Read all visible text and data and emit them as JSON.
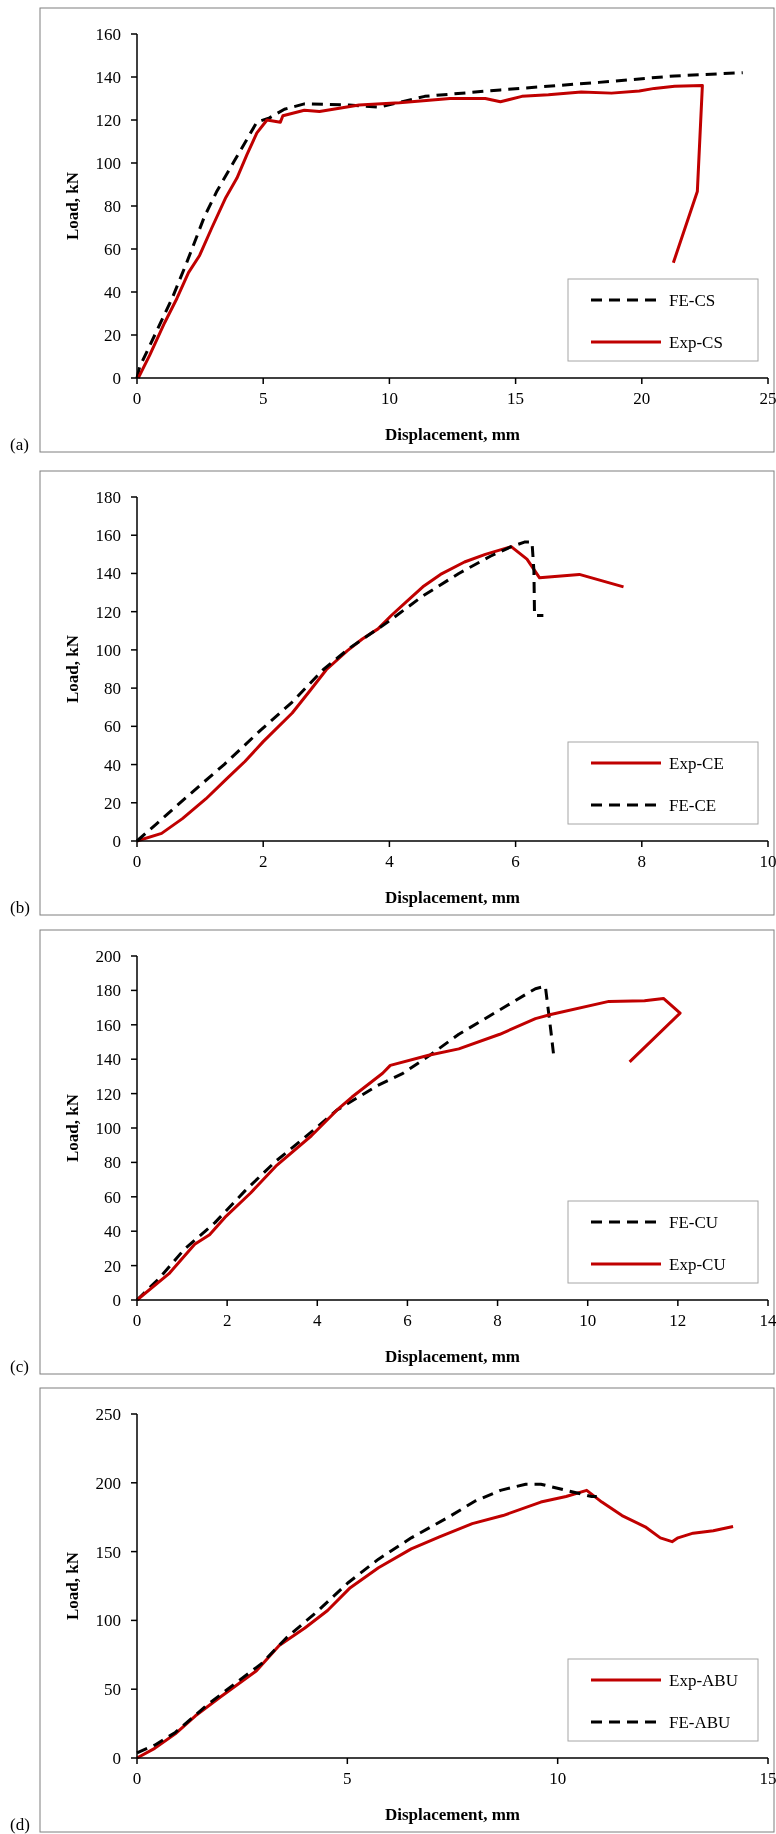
{
  "chart_data": [
    {
      "type": "line",
      "xlabel": "Displacement, mm",
      "ylabel": "Load, kN",
      "xlim": [
        0,
        25
      ],
      "xticks": [
        0,
        5,
        10,
        15,
        20,
        25
      ],
      "ylim": [
        0,
        160
      ],
      "yticks": [
        0,
        20,
        40,
        60,
        80,
        100,
        120,
        140,
        160
      ],
      "grid": false,
      "legend": "bottom right",
      "marker": "none",
      "annotations": [
        "(a)"
      ],
      "series": [
        {
          "name": "FE-CS",
          "color": "#000000",
          "line_style": "dashed",
          "x": [
            0,
            0.1,
            1.39,
            1.98,
            2.67,
            3.17,
            3.86,
            4.75,
            5.25,
            5.84,
            6.63,
            8.4,
            9.6,
            11.4,
            14.4,
            18.3,
            21.3,
            24
          ],
          "values": [
            0,
            5,
            37,
            54,
            75,
            87,
            101,
            119,
            121,
            125,
            127.5,
            127,
            126,
            131,
            134,
            137.5,
            140.5,
            142
          ]
        },
        {
          "name": "Exp-CS",
          "color": "#c00000",
          "line_style": "solid",
          "x": [
            0.05,
            0.5,
            1.09,
            1.58,
            2.04,
            2.48,
            2.97,
            3.52,
            3.96,
            4.36,
            4.75,
            5.15,
            5.68,
            5.78,
            6.63,
            7.23,
            8.8,
            10.4,
            12.4,
            13.8,
            14.4,
            15.25,
            16.3,
            17.6,
            18.8,
            19.9,
            20.5,
            21.3,
            22.4,
            22.2,
            21.25
          ],
          "values": [
            0,
            10.5,
            25.6,
            37,
            49,
            57,
            70,
            84,
            93,
            104,
            114,
            120,
            119,
            122,
            124.5,
            124,
            127,
            128,
            130,
            130,
            128.5,
            131,
            131.7,
            133,
            132.5,
            133.5,
            134.7,
            135.7,
            136,
            86.7,
            53.6
          ]
        }
      ]
    },
    {
      "type": "line",
      "xlabel": "Displacement, mm",
      "ylabel": "Load, kN",
      "xlim": [
        0,
        10
      ],
      "xticks": [
        0,
        2,
        4,
        6,
        8,
        10
      ],
      "ylim": [
        0,
        180
      ],
      "yticks": [
        0,
        20,
        40,
        60,
        80,
        100,
        120,
        140,
        160,
        180
      ],
      "grid": false,
      "legend": "bottom right",
      "marker": "none",
      "annotations": [
        "(b)"
      ],
      "series": [
        {
          "name": "Exp-CE",
          "color": "#c00000",
          "line_style": "solid",
          "x": [
            0,
            0.39,
            0.72,
            1.09,
            1.42,
            1.71,
            2.0,
            2.46,
            2.75,
            3.0,
            3.33,
            3.57,
            3.82,
            4.03,
            4.28,
            4.53,
            4.81,
            5.19,
            5.52,
            5.93,
            6.18,
            6.38,
            7.01,
            7.71
          ],
          "values": [
            0,
            4,
            11.7,
            22,
            32.5,
            41.6,
            52,
            67,
            79,
            89.6,
            99.5,
            105.7,
            111,
            118,
            125.5,
            133,
            139.5,
            146,
            150,
            154,
            147.5,
            137.7,
            139.5,
            133
          ]
        },
        {
          "name": "FE-CE",
          "color": "#000000",
          "line_style": "dashed",
          "x": [
            0,
            0.31,
            0.8,
            1.38,
            1.96,
            2.46,
            2.95,
            3.37,
            3.95,
            4.52,
            5.1,
            5.6,
            5.93,
            6.14,
            6.26,
            6.29,
            6.3,
            6.44
          ],
          "values": [
            0,
            9,
            23.4,
            40,
            58,
            72.7,
            89.6,
            101,
            114,
            128,
            140,
            149,
            154,
            156.4,
            156.4,
            141.6,
            118,
            118
          ]
        }
      ]
    },
    {
      "type": "line",
      "xlabel": "Displacement, mm",
      "ylabel": "Load, kN",
      "xlim": [
        0,
        14
      ],
      "xticks": [
        0,
        2,
        4,
        6,
        8,
        10,
        12,
        14
      ],
      "ylim": [
        0,
        200
      ],
      "yticks": [
        0,
        20,
        40,
        60,
        80,
        100,
        120,
        140,
        160,
        180,
        200
      ],
      "grid": false,
      "legend": "bottom right",
      "marker": "none",
      "annotations": [
        "(c)"
      ],
      "series": [
        {
          "name": "FE-CU",
          "color": "#000000",
          "line_style": "dashed",
          "x": [
            0,
            0.49,
            1.05,
            1.73,
            2.4,
            3.08,
            3.87,
            4.44,
            5.34,
            5.9,
            6.47,
            7.14,
            8.05,
            8.84,
            9.06,
            9.18,
            9.25
          ],
          "values": [
            0,
            12.5,
            29.5,
            45,
            63.6,
            80.7,
            97.7,
            110.5,
            124.7,
            131.8,
            141.8,
            154.5,
            168.7,
            181,
            182.4,
            157,
            141
          ]
        },
        {
          "name": "Exp-CU",
          "color": "#c00000",
          "line_style": "solid",
          "x": [
            0,
            0.71,
            1.28,
            1.61,
            1.95,
            2.52,
            3.08,
            3.87,
            4.44,
            4.77,
            5.45,
            5.62,
            6.47,
            7.14,
            8.05,
            8.84,
            9.18,
            10.47,
            11.26,
            11.68,
            12.05,
            10.93
          ],
          "values": [
            0,
            15.3,
            32.4,
            38,
            48,
            62.2,
            77.8,
            95.5,
            110.5,
            118,
            131.8,
            136.4,
            142.3,
            146,
            154.5,
            163.6,
            166,
            173.6,
            174,
            175.3,
            166.8,
            138.4
          ]
        }
      ]
    },
    {
      "type": "line",
      "xlabel": "Displacement, mm",
      "ylabel": "Load, kN",
      "xlim": [
        0,
        15
      ],
      "xticks": [
        0,
        5,
        10,
        15
      ],
      "ylim": [
        0,
        250
      ],
      "yticks": [
        0,
        50,
        100,
        150,
        200,
        250
      ],
      "grid": false,
      "legend": "bottom right",
      "marker": "none",
      "annotations": [
        "(d)"
      ],
      "series": [
        {
          "name": "Exp-ABU",
          "color": "#c00000",
          "line_style": "solid",
          "x": [
            0,
            0.42,
            0.91,
            1.39,
            1.99,
            2.84,
            3.38,
            3.99,
            4.53,
            5.07,
            5.74,
            6.52,
            7.19,
            7.97,
            8.7,
            9.6,
            10.2,
            10.69,
            11.05,
            11.53,
            12.08,
            12.44,
            12.72,
            12.86,
            13.22,
            13.7,
            14.17
          ],
          "values": [
            0,
            7,
            17.6,
            30.7,
            44.5,
            63.4,
            81.7,
            94.5,
            107.2,
            123.8,
            138.3,
            152,
            160.7,
            170.3,
            176.2,
            186,
            190,
            194.5,
            186,
            176.2,
            168,
            160,
            157.2,
            160,
            163.4,
            165.2,
            168.3
          ]
        },
        {
          "name": "FE-ABU",
          "color": "#000000",
          "line_style": "dashed",
          "x": [
            0,
            0.42,
            0.91,
            1.63,
            2.36,
            2.96,
            3.56,
            4.29,
            5.01,
            5.74,
            6.52,
            7.43,
            8.03,
            8.64,
            9.24,
            9.6,
            10.2,
            10.81,
            10.93
          ],
          "values": [
            3.8,
            9.3,
            18.6,
            37.6,
            54.8,
            68.6,
            87.6,
            106.6,
            127.2,
            144.5,
            160,
            175.5,
            186.6,
            194.5,
            199,
            199,
            194.5,
            190,
            190
          ]
        }
      ]
    }
  ]
}
